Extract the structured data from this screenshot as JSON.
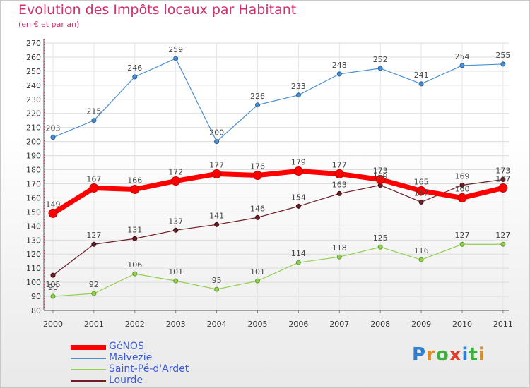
{
  "title": "Evolution des Impôts locaux par Habitant",
  "subtitle": "(en € et par an)",
  "logo": {
    "text": "Proxiti",
    "letter_colors": [
      "#2f7fd0",
      "#e08a1e",
      "#3fae3f",
      "#e23b2a",
      "#2f7fd0",
      "#3fae3f",
      "#e08a1e"
    ]
  },
  "chart_data": {
    "type": "line",
    "title": "Evolution des Impôts locaux par Habitant",
    "subtitle": "(en € et par an)",
    "x": [
      "2000",
      "2001",
      "2002",
      "2003",
      "2004",
      "2005",
      "2006",
      "2007",
      "2008",
      "2009",
      "2010",
      "2011"
    ],
    "ylim": [
      80,
      270
    ],
    "yticks": [
      80,
      90,
      100,
      110,
      120,
      130,
      140,
      150,
      160,
      170,
      180,
      190,
      200,
      210,
      220,
      230,
      240,
      250,
      260,
      270
    ],
    "grid": true,
    "legend_position": "bottom-left",
    "series": [
      {
        "name": "Malvezie",
        "color": "#4b8fd0",
        "values": [
          203,
          215,
          246,
          259,
          200,
          226,
          233,
          248,
          252,
          241,
          254,
          255
        ]
      },
      {
        "name": "Lourde",
        "color": "#6b1e24",
        "values": [
          105,
          127,
          131,
          137,
          141,
          146,
          154,
          163,
          169,
          157,
          169,
          173
        ]
      },
      {
        "name": "Saint-Pé-d'Ardet",
        "color": "#92d050",
        "values": [
          90,
          92,
          106,
          101,
          95,
          101,
          114,
          118,
          125,
          116,
          127,
          127
        ]
      },
      {
        "name": "GéNOS",
        "color": "#ff0000",
        "values": [
          149,
          167,
          166,
          172,
          177,
          176,
          179,
          177,
          173,
          165,
          160,
          167
        ]
      }
    ],
    "legend_order": [
      "GéNOS",
      "Malvezie",
      "Saint-Pé-d'Ardet",
      "Lourde"
    ]
  }
}
